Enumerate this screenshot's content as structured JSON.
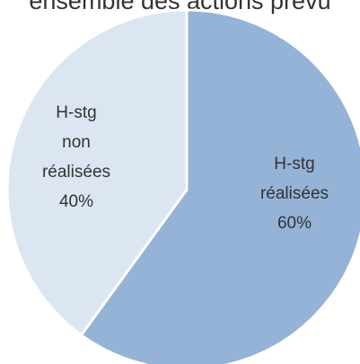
{
  "chart_data": {
    "type": "pie",
    "title": "ensemble des actions prévu",
    "slices": [
      {
        "category": "H-stg réalisées",
        "value": 60,
        "color": "#95b3d7",
        "label_lines": [
          "H-stg",
          "réalisées",
          "60%"
        ]
      },
      {
        "category": "H-stg non réalisées",
        "value": 40,
        "color": "#dce6f2",
        "label_lines": [
          "H-stg",
          "non",
          "réalisées",
          "40%"
        ]
      }
    ]
  }
}
